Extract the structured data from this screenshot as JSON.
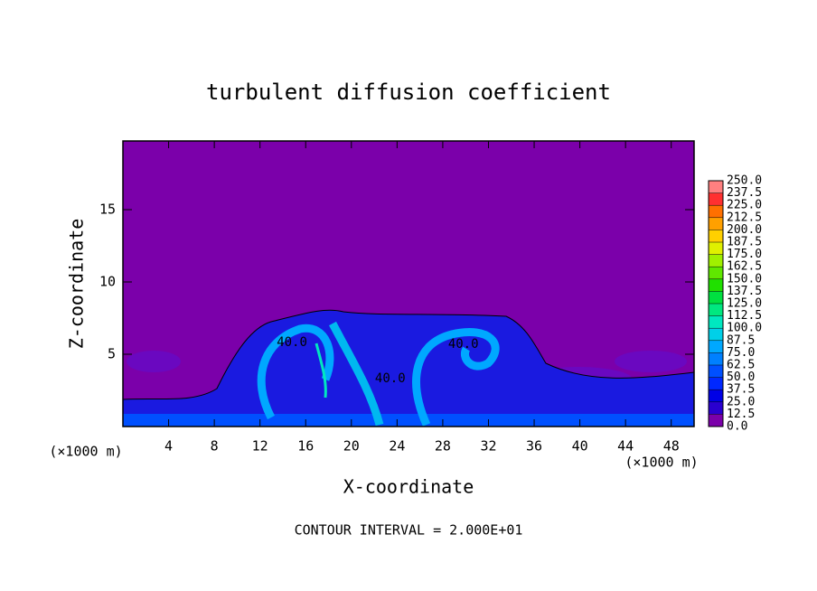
{
  "chart_data": {
    "type": "contour",
    "title": "turbulent diffusion coefficient",
    "x_label": "X-coordinate",
    "y_label": "Z-coordinate",
    "x_unit": "(×1000 m)",
    "y_unit": "(×1000 m)",
    "footer": "CONTOUR INTERVAL = 2.000E+01",
    "xlim": [
      0,
      50
    ],
    "ylim": [
      0,
      19.75
    ],
    "xticks": [
      4,
      8,
      12,
      16,
      20,
      24,
      28,
      32,
      36,
      40,
      44,
      48
    ],
    "yticks": [
      5,
      10,
      15
    ],
    "contour_labels": [
      {
        "label": "40.0",
        "value": 40,
        "x": 14.8,
        "y": 5.8
      },
      {
        "label": "40.0",
        "value": 40,
        "x": 29.8,
        "y": 5.7
      },
      {
        "label": "40.0",
        "value": 40,
        "x": 23.4,
        "y": 3.3
      }
    ],
    "colorbar": {
      "lim": [
        0,
        250
      ],
      "ticks": [
        {
          "value": 0,
          "label": "0.0"
        },
        12.5,
        {
          "value": 25,
          "label": "25.0"
        },
        37.5,
        {
          "value": 50,
          "label": "50.0"
        },
        62.5,
        {
          "value": 75,
          "label": "75.0"
        },
        87.5,
        {
          "value": 100,
          "label": "100.0"
        },
        112.5,
        {
          "value": 125,
          "label": "125.0"
        },
        137.5,
        {
          "value": 150,
          "label": "150.0"
        },
        162.5,
        {
          "value": 175,
          "label": "175.0"
        },
        187.5,
        {
          "value": 200,
          "label": "200.0"
        },
        212.5,
        {
          "value": 225,
          "label": "225.0"
        },
        237.5,
        {
          "value": 250,
          "label": "250.0"
        }
      ],
      "colors": [
        "#7b00aa",
        "#2a00d0",
        "#0000e6",
        "#0028ff",
        "#0050ff",
        "#0080ff",
        "#00a8ff",
        "#00d0e8",
        "#00e8c0",
        "#00e880",
        "#00e040",
        "#20e000",
        "#60e800",
        "#a0f000",
        "#e0f000",
        "#ffd000",
        "#ffa000",
        "#ff7000",
        "#ff3030",
        "#ff8080"
      ]
    }
  }
}
